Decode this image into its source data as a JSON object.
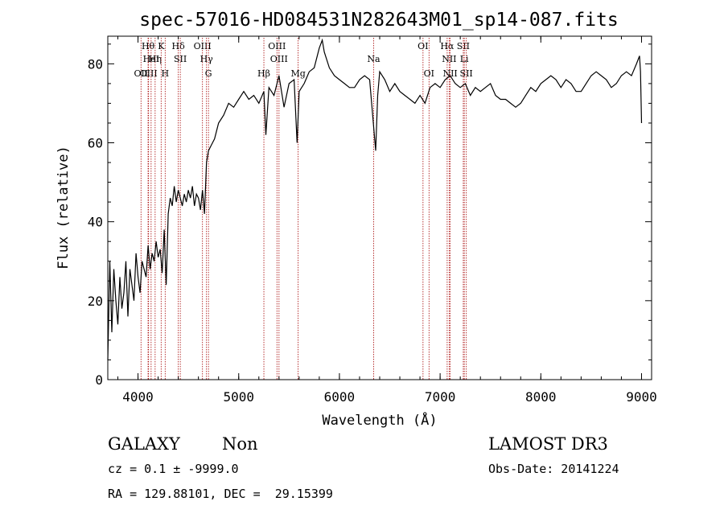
{
  "chart_data": {
    "type": "line",
    "title": "spec-57016-HD084531N282643M01_sp14-087.fits",
    "xlabel": "Wavelength (Å)",
    "ylabel": "Flux (relative)",
    "xlim": [
      3700,
      9100
    ],
    "ylim": [
      0,
      87
    ],
    "xticks": [
      4000,
      5000,
      6000,
      7000,
      8000,
      9000
    ],
    "yticks": [
      0,
      20,
      40,
      60,
      80
    ],
    "grid": false,
    "series": [
      {
        "x": [
          3700,
          3720,
          3740,
          3760,
          3780,
          3800,
          3820,
          3840,
          3860,
          3880,
          3900,
          3920,
          3940,
          3960,
          3980,
          4000,
          4020,
          4040,
          4060,
          4080,
          4100,
          4120,
          4140,
          4160,
          4180,
          4200,
          4220,
          4240,
          4260,
          4280,
          4300,
          4320,
          4340,
          4360,
          4380,
          4400,
          4420,
          4440,
          4460,
          4480,
          4500,
          4520,
          4540,
          4560,
          4580,
          4600,
          4620,
          4640,
          4660,
          4680,
          4700,
          4720,
          4740,
          4760,
          4780,
          4800,
          4850,
          4900,
          4950,
          5000,
          5050,
          5100,
          5150,
          5200,
          5250,
          5270,
          5300,
          5350,
          5400,
          5450,
          5500,
          5550,
          5580,
          5600,
          5650,
          5700,
          5750,
          5800,
          5830,
          5850,
          5900,
          5950,
          6000,
          6050,
          6100,
          6150,
          6200,
          6250,
          6300,
          6340,
          6360,
          6380,
          6400,
          6450,
          6500,
          6550,
          6600,
          6650,
          6700,
          6750,
          6800,
          6850,
          6900,
          6950,
          7000,
          7050,
          7100,
          7150,
          7200,
          7250,
          7300,
          7350,
          7400,
          7450,
          7500,
          7550,
          7600,
          7650,
          7700,
          7750,
          7800,
          7850,
          7900,
          7950,
          8000,
          8050,
          8100,
          8150,
          8200,
          8250,
          8300,
          8350,
          8400,
          8450,
          8500,
          8550,
          8600,
          8650,
          8700,
          8750,
          8800,
          8850,
          8900,
          8950,
          8980,
          8990,
          9000
        ],
        "y": [
          5,
          30,
          12,
          28,
          20,
          14,
          26,
          18,
          22,
          30,
          16,
          28,
          24,
          20,
          32,
          26,
          22,
          30,
          28,
          26,
          34,
          28,
          32,
          30,
          35,
          31,
          33,
          27,
          38,
          24,
          42,
          46,
          44,
          49,
          45,
          48,
          46,
          44,
          47,
          45,
          48,
          46,
          49,
          44,
          47,
          46,
          43,
          48,
          42,
          55,
          58,
          59,
          60,
          61,
          63,
          65,
          67,
          70,
          69,
          71,
          73,
          71,
          72,
          70,
          73,
          62,
          74,
          72,
          77,
          69,
          75,
          76,
          60,
          73,
          75,
          78,
          79,
          84,
          86,
          83,
          79,
          77,
          76,
          75,
          74,
          74,
          76,
          77,
          76,
          64,
          58,
          72,
          78,
          76,
          73,
          75,
          73,
          72,
          71,
          70,
          72,
          70,
          74,
          75,
          74,
          76,
          77,
          75,
          74,
          75,
          72,
          74,
          73,
          74,
          75,
          72,
          71,
          71,
          70,
          69,
          70,
          72,
          74,
          73,
          75,
          76,
          77,
          76,
          74,
          76,
          75,
          73,
          73,
          75,
          77,
          78,
          77,
          76,
          74,
          75,
          77,
          78,
          77,
          80,
          82,
          78,
          65
        ]
      }
    ],
    "line_markers": [
      {
        "w": 4030,
        "row": 2,
        "label": "OII"
      },
      {
        "w": 4100,
        "row": 0,
        "label": "Hθ"
      },
      {
        "w": 4105,
        "row": 2,
        "label": "OIII"
      },
      {
        "w": 4130,
        "row": 1,
        "label": "HeI"
      },
      {
        "w": 4170,
        "row": 1,
        "label": "Hη"
      },
      {
        "w": 4230,
        "row": 0,
        "label": "K"
      },
      {
        "w": 4270,
        "row": 2,
        "label": "H"
      },
      {
        "w": 4400,
        "row": 0,
        "label": "Hδ"
      },
      {
        "w": 4420,
        "row": 1,
        "label": "SII"
      },
      {
        "w": 4640,
        "row": 0,
        "label": "OIII"
      },
      {
        "w": 4680,
        "row": 1,
        "label": "Hγ"
      },
      {
        "w": 4700,
        "row": 2,
        "label": "G"
      },
      {
        "w": 5250,
        "row": 2,
        "label": "Hβ"
      },
      {
        "w": 5380,
        "row": 0,
        "label": "OIII"
      },
      {
        "w": 5400,
        "row": 1,
        "label": "OIII"
      },
      {
        "w": 5590,
        "row": 2,
        "label": "Mg"
      },
      {
        "w": 6340,
        "row": 1,
        "label": "Na"
      },
      {
        "w": 6830,
        "row": 0,
        "label": "OI"
      },
      {
        "w": 6890,
        "row": 2,
        "label": "OI"
      },
      {
        "w": 7070,
        "row": 0,
        "label": "Hα"
      },
      {
        "w": 7090,
        "row": 1,
        "label": "NII"
      },
      {
        "w": 7100,
        "row": 2,
        "label": "NII"
      },
      {
        "w": 7230,
        "row": 0,
        "label": "SII"
      },
      {
        "w": 7240,
        "row": 1,
        "label": "Li"
      },
      {
        "w": 7260,
        "row": 2,
        "label": "SII"
      }
    ]
  },
  "info": {
    "object_class": "GALAXY",
    "subclass": "Non",
    "cz": "cz = 0.1 ± -9999.0",
    "coords": "RA = 129.88101, DEC =  29.15399",
    "survey": "LAMOST DR3",
    "obs_date": "Obs-Date: 20141224"
  }
}
